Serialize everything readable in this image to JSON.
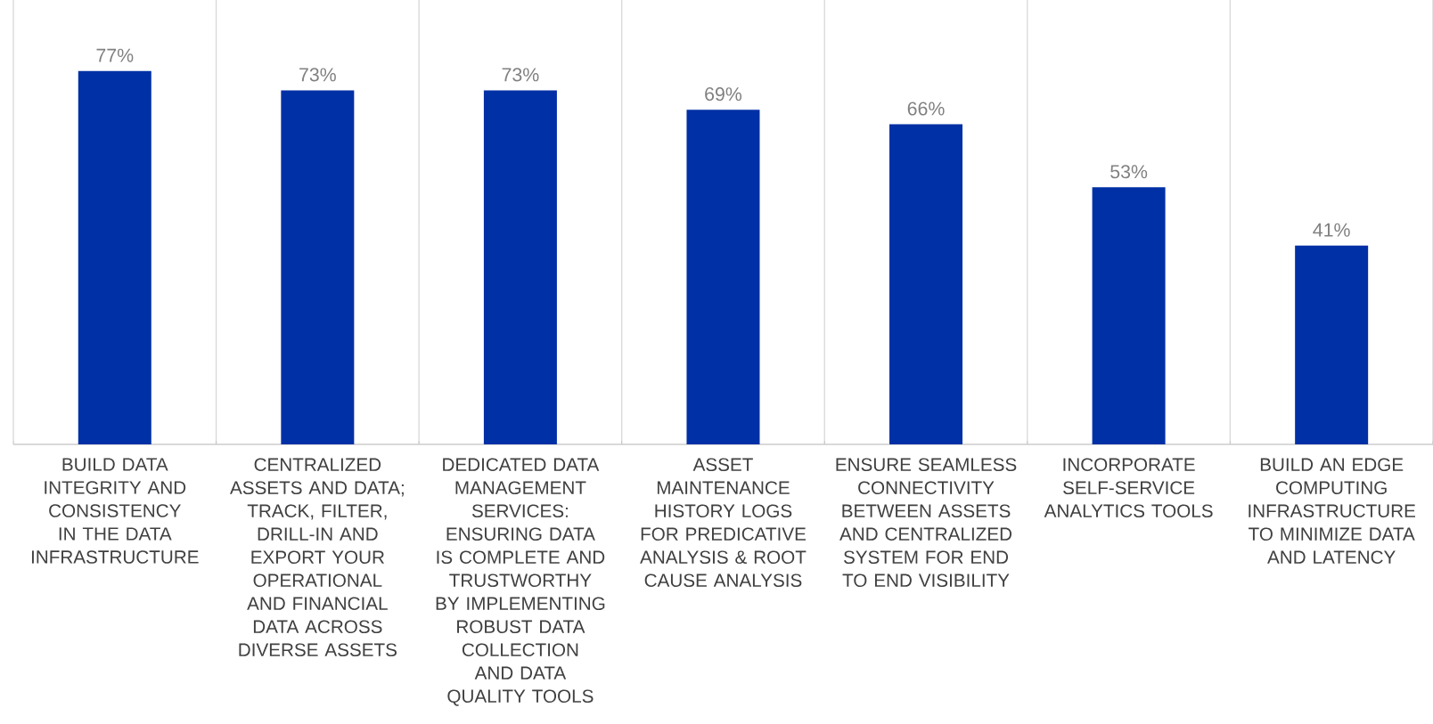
{
  "chart_data": {
    "type": "bar",
    "categories": [
      "BUILD DATA INTEGRITY AND CONSISTENCY IN THE DATA INFRASTRUCTURE",
      "CENTRALIZED ASSETS AND DATA; TRACK, FILTER, DRILL-IN AND EXPORT YOUR OPERATIONAL AND FINANCIAL DATA ACROSS DIVERSE ASSETS",
      "DEDICATED DATA MANAGEMENT SERVICES: ENSURING DATA IS COMPLETE AND TRUSTWORTHY BY IMPLEMENTING ROBUST DATA COLLECTION AND DATA QUALITY TOOLS",
      "ASSET MAINTENANCE HISTORY LOGS FOR PREDICATIVE ANALYSIS & ROOT CAUSE ANALYSIS",
      "ENSURE SEAMLESS CONNECTIVITY BETWEEN ASSETS AND CENTRALIZED SYSTEM FOR END TO END VISIBILITY",
      "INCORPORATE SELF-SERVICE ANALYTICS TOOLS",
      "BUILD AN EDGE COMPUTING INFRASTRUCTURE TO MINIMIZE DATA AND LATENCY"
    ],
    "values": [
      77,
      73,
      73,
      69,
      66,
      53,
      41
    ],
    "value_labels": [
      "77%",
      "73%",
      "73%",
      "69%",
      "66%",
      "53%",
      "41%"
    ],
    "color": "#0030a5",
    "grid": "x"
  }
}
